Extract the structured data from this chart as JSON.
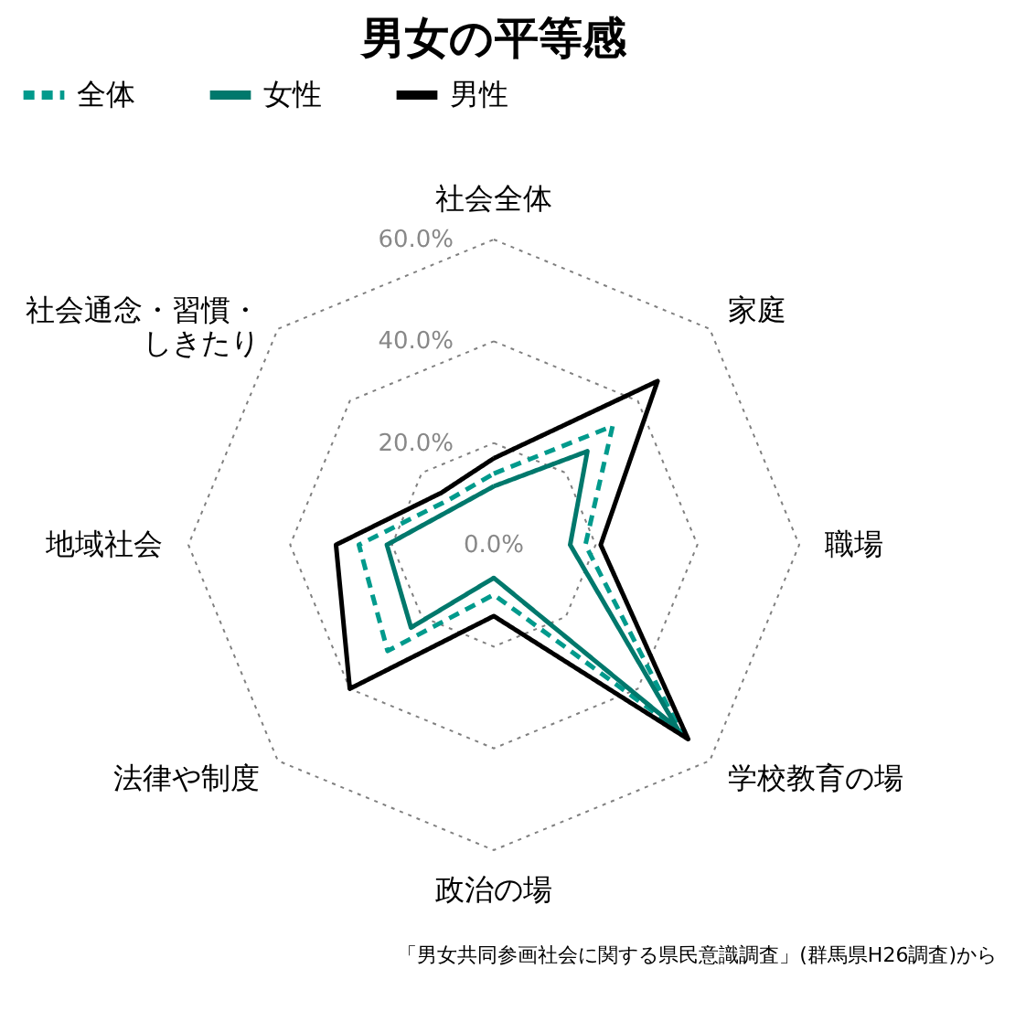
{
  "chart_data": {
    "type": "radar",
    "title": "男女の平等感",
    "categories": [
      "社会全体",
      "家庭",
      "職場",
      "学校教育の場",
      "政治の場",
      "法律や制度",
      "地域社会",
      "社会通念・習慣・しきたり"
    ],
    "series": [
      {
        "name": "全体",
        "color": "#009a8c",
        "line_style": "dashed",
        "values": [
          14,
          33,
          18,
          52,
          9.8,
          29.5,
          26.5,
          12.5
        ]
      },
      {
        "name": "女性",
        "color": "#00786c",
        "line_style": "solid",
        "values": [
          11.5,
          26,
          15,
          51,
          6.5,
          23,
          21,
          10.5
        ]
      },
      {
        "name": "男性",
        "color": "#000000",
        "line_style": "solid",
        "values": [
          17,
          45.5,
          21,
          54,
          14,
          40,
          31,
          14.5
        ]
      }
    ],
    "ylim": [
      0,
      60
    ],
    "yticks": [
      {
        "value": 0,
        "label": "0.0%"
      },
      {
        "value": 20,
        "label": "20.0%"
      },
      {
        "value": 40,
        "label": "40.0%"
      },
      {
        "value": 60,
        "label": "60.0%"
      }
    ],
    "grid": true,
    "legend": "top",
    "annotations": [
      "「男女共同参画社会に関する県民意識調査」(群馬県H26調査)から"
    ]
  }
}
